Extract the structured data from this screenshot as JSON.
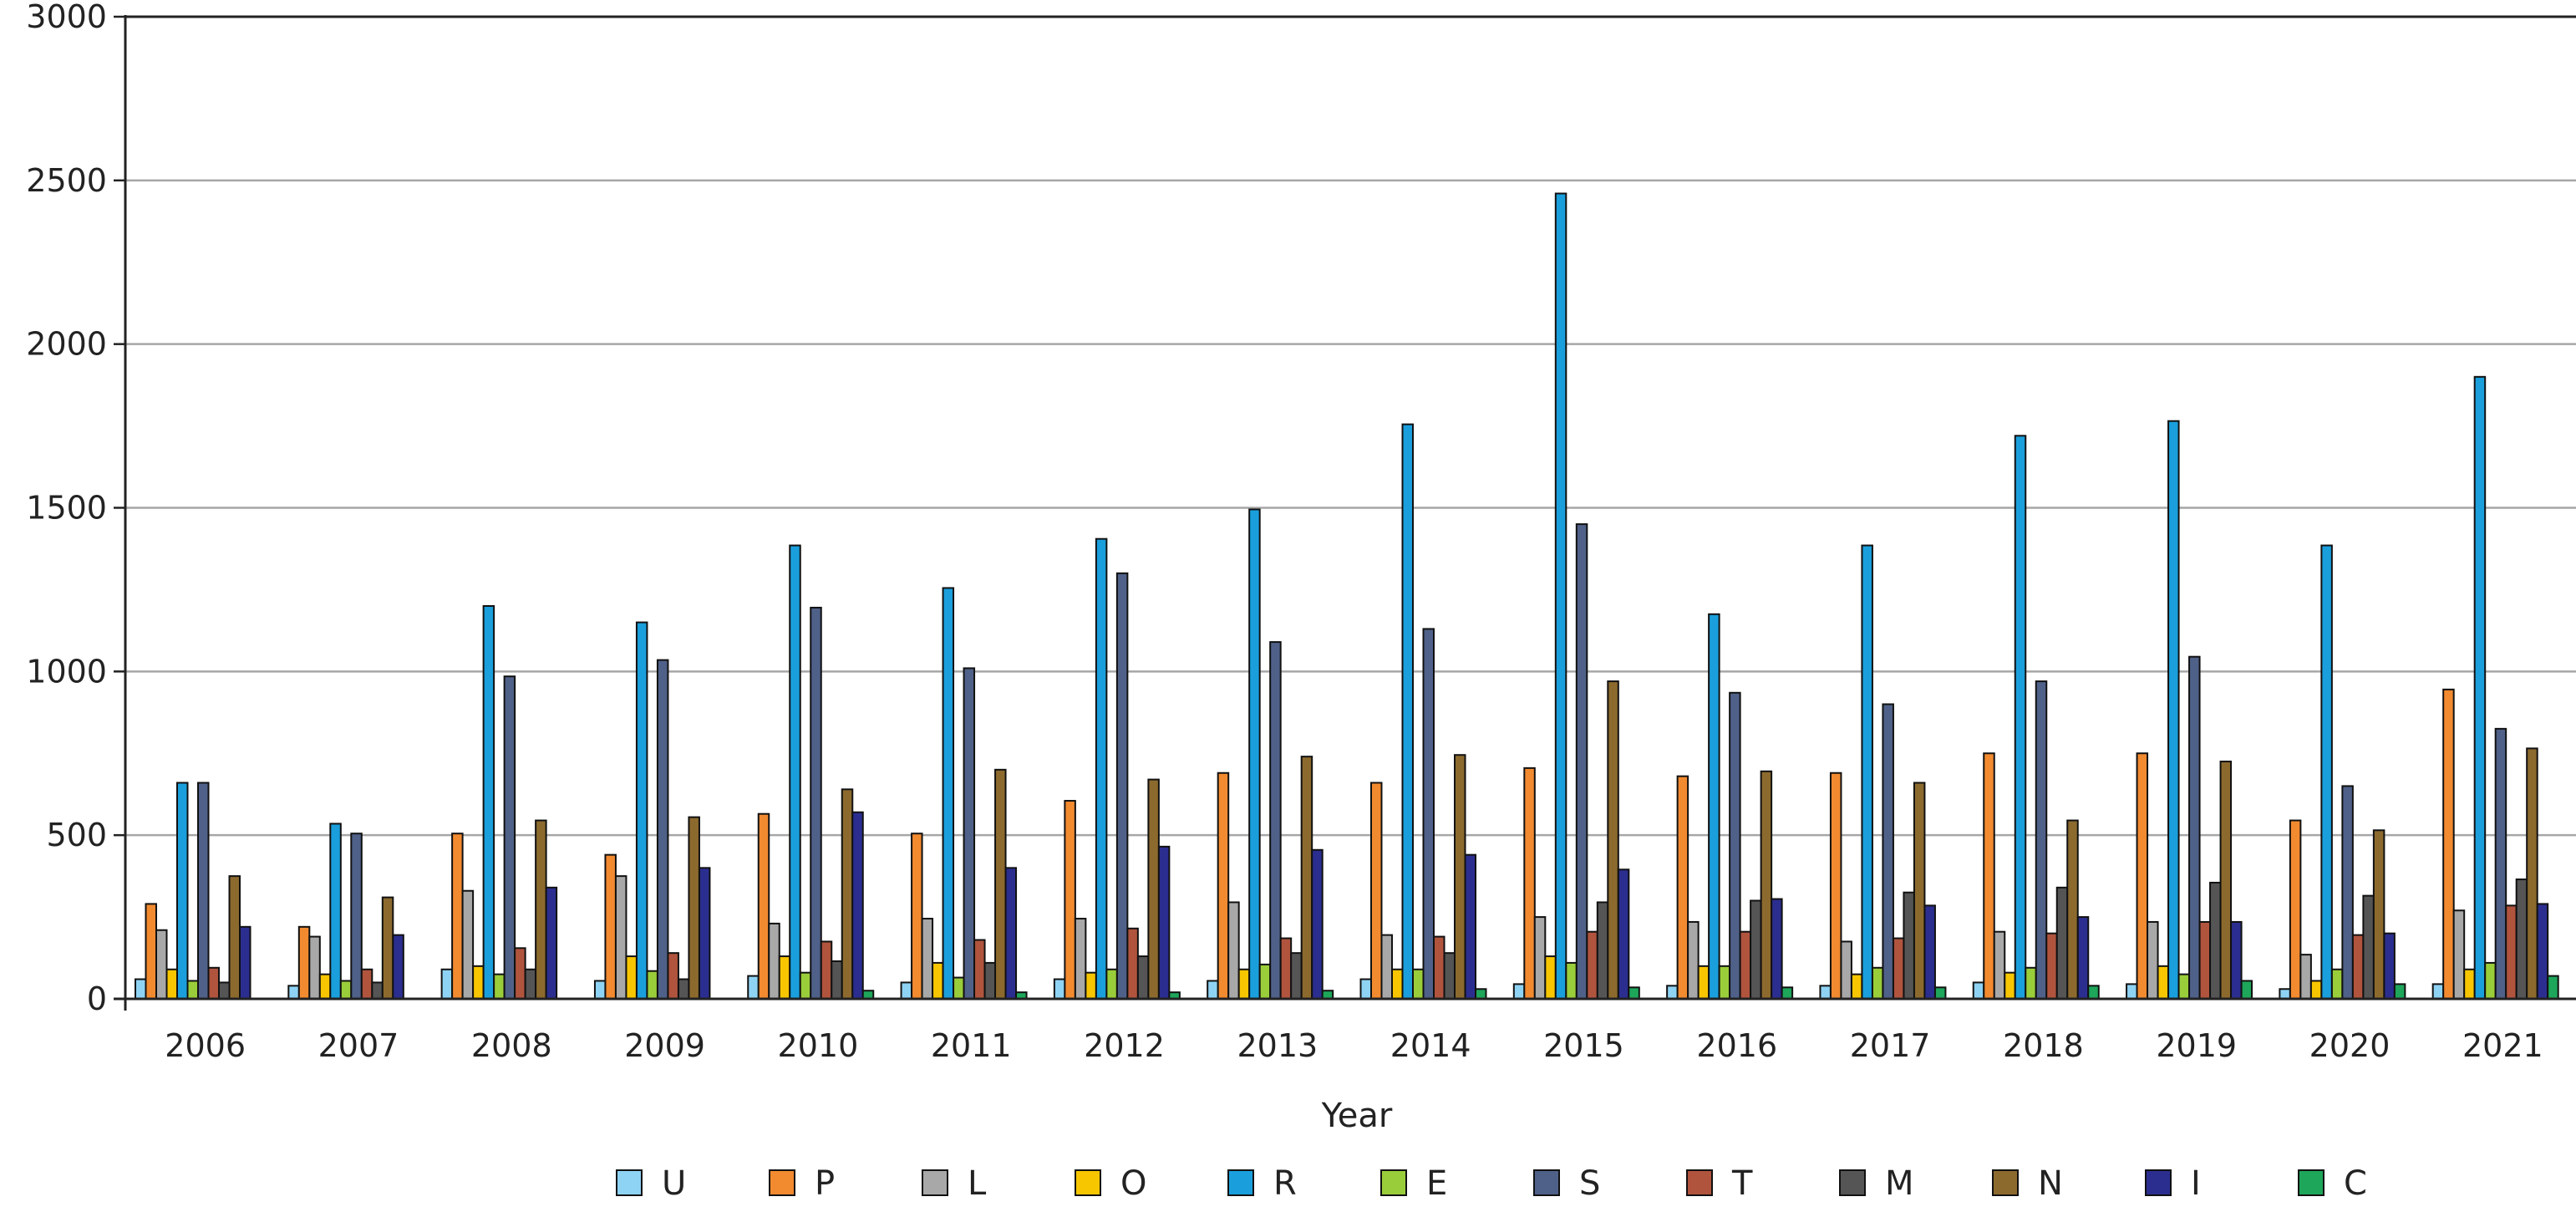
{
  "chart_data": {
    "type": "bar",
    "xlabel": "Year",
    "ylabel": "",
    "ylim": [
      0,
      3000
    ],
    "yticks": [
      0,
      500,
      1000,
      1500,
      2000,
      2500,
      3000
    ],
    "grid": true,
    "legend": "bottom",
    "categories": [
      "2006",
      "2007",
      "2008",
      "2009",
      "2010",
      "2011",
      "2012",
      "2013",
      "2014",
      "2015",
      "2016",
      "2017",
      "2018",
      "2019",
      "2020",
      "2021"
    ],
    "series": [
      {
        "name": "U",
        "color": "#8fd3f4",
        "values": [
          60,
          40,
          90,
          55,
          70,
          50,
          60,
          55,
          60,
          45,
          40,
          40,
          50,
          45,
          30,
          45
        ]
      },
      {
        "name": "P",
        "color": "#f28a30",
        "values": [
          290,
          220,
          505,
          440,
          565,
          505,
          605,
          690,
          660,
          705,
          680,
          690,
          750,
          750,
          545,
          945
        ]
      },
      {
        "name": "L",
        "color": "#a8a8a8",
        "values": [
          210,
          190,
          330,
          375,
          230,
          245,
          245,
          295,
          195,
          250,
          235,
          175,
          205,
          235,
          135,
          270
        ]
      },
      {
        "name": "O",
        "color": "#f7c600",
        "values": [
          90,
          75,
          100,
          130,
          130,
          110,
          80,
          90,
          90,
          130,
          100,
          75,
          80,
          100,
          55,
          90
        ]
      },
      {
        "name": "R",
        "color": "#1a9fdc",
        "values": [
          660,
          535,
          1200,
          1150,
          1385,
          1255,
          1405,
          1495,
          1755,
          2460,
          1175,
          1385,
          1720,
          1765,
          1385,
          1900
        ]
      },
      {
        "name": "E",
        "color": "#9acd3a",
        "values": [
          55,
          55,
          75,
          85,
          80,
          65,
          90,
          105,
          90,
          110,
          100,
          95,
          95,
          75,
          90,
          110
        ]
      },
      {
        "name": "S",
        "color": "#4f6188",
        "values": [
          660,
          505,
          985,
          1035,
          1195,
          1010,
          1300,
          1090,
          1130,
          1450,
          935,
          900,
          970,
          1045,
          650,
          825
        ]
      },
      {
        "name": "T",
        "color": "#b0543e",
        "values": [
          95,
          90,
          155,
          140,
          175,
          180,
          215,
          185,
          190,
          205,
          205,
          185,
          200,
          235,
          195,
          285
        ]
      },
      {
        "name": "M",
        "color": "#555555",
        "values": [
          50,
          50,
          90,
          60,
          115,
          110,
          130,
          140,
          140,
          295,
          300,
          325,
          340,
          355,
          315,
          365
        ]
      },
      {
        "name": "N",
        "color": "#8c6a2e",
        "values": [
          375,
          310,
          545,
          555,
          640,
          700,
          670,
          740,
          745,
          970,
          695,
          660,
          545,
          725,
          515,
          765
        ]
      },
      {
        "name": "I",
        "color": "#2b2e8f",
        "values": [
          220,
          195,
          340,
          400,
          570,
          400,
          465,
          455,
          440,
          395,
          305,
          285,
          250,
          235,
          200,
          290
        ]
      },
      {
        "name": "C",
        "color": "#1ea65a",
        "values": [
          0,
          0,
          0,
          0,
          25,
          20,
          20,
          25,
          30,
          35,
          35,
          35,
          40,
          55,
          45,
          70
        ]
      }
    ]
  }
}
